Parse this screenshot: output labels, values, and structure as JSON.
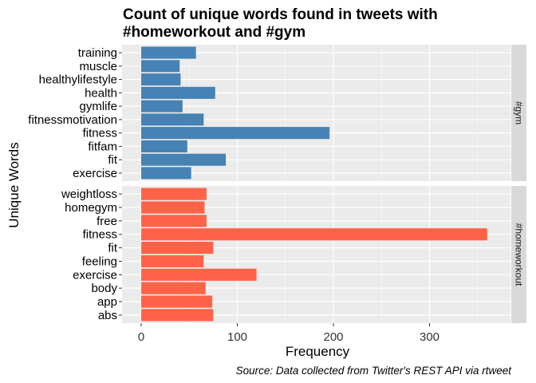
{
  "chart_data": {
    "type": "bar",
    "orientation": "horizontal",
    "title_lines": [
      "Count of unique words found in tweets with",
      "#homeworkout and #gym"
    ],
    "xlabel": "Frequency",
    "ylabel": "Unique Words",
    "caption": "Source: Data collected from Twitter's REST API via rtweet",
    "xlim": [
      0,
      375
    ],
    "xticks": [
      0,
      100,
      200,
      300
    ],
    "grid": true,
    "facets": [
      {
        "label": "#gym",
        "color": "#4682B4",
        "categories": [
          "training",
          "muscle",
          "healthylifestyle",
          "health",
          "gymlife",
          "fitnessmotivation",
          "fitness",
          "fitfam",
          "fit",
          "exercise"
        ],
        "values": [
          57,
          40,
          41,
          77,
          43,
          65,
          196,
          48,
          88,
          52
        ]
      },
      {
        "label": "#homeworkout",
        "color": "#FF6347",
        "categories": [
          "weightloss",
          "homegym",
          "free",
          "fitness",
          "fit",
          "feeling",
          "exercise",
          "body",
          "app",
          "abs"
        ],
        "values": [
          68,
          66,
          68,
          360,
          75,
          65,
          120,
          67,
          74,
          75
        ]
      }
    ]
  }
}
